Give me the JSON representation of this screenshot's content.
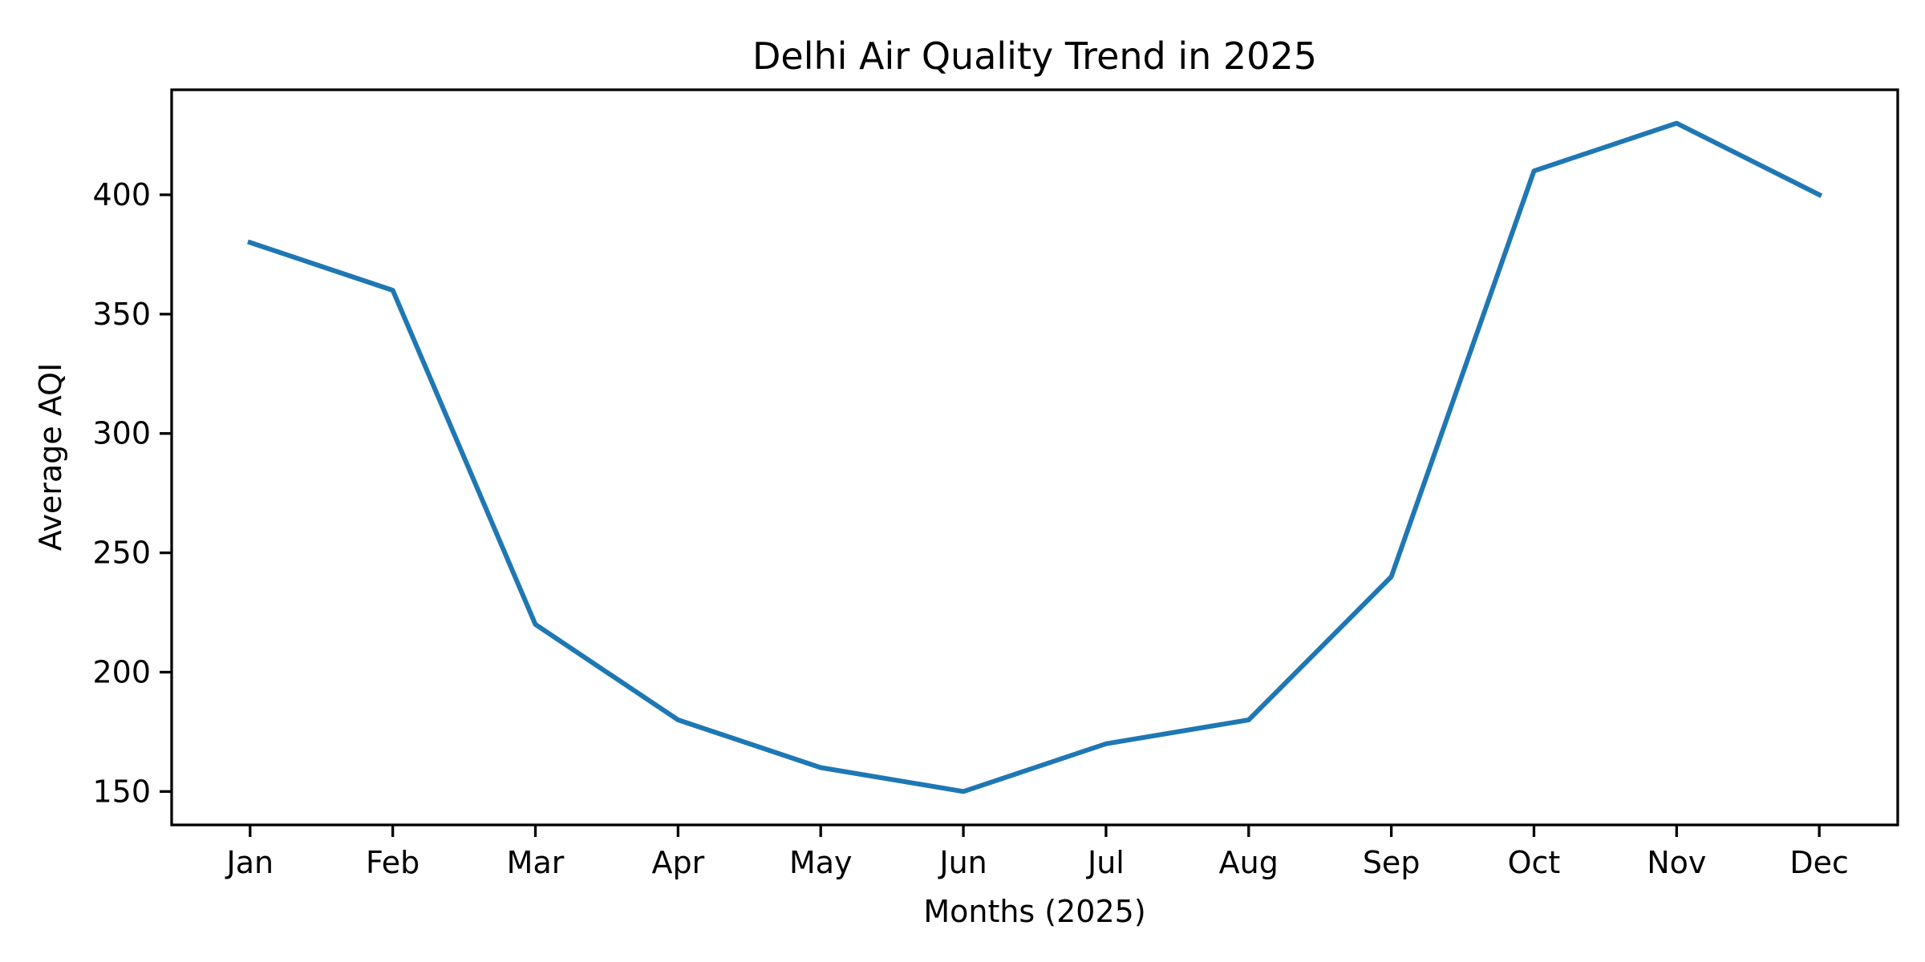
{
  "chart_data": {
    "type": "line",
    "title": "Delhi Air Quality Trend in 2025",
    "xlabel": "Months (2025)",
    "ylabel": "Average AQI",
    "categories": [
      "Jan",
      "Feb",
      "Mar",
      "Apr",
      "May",
      "Jun",
      "Jul",
      "Aug",
      "Sep",
      "Oct",
      "Nov",
      "Dec"
    ],
    "series": [
      {
        "name": "Average AQI",
        "values": [
          380,
          360,
          220,
          180,
          160,
          150,
          170,
          180,
          240,
          410,
          430,
          400
        ],
        "color": "#1f77b4"
      }
    ],
    "ylim": [
      136,
      444
    ],
    "yticks": [
      150,
      200,
      250,
      300,
      350,
      400
    ],
    "grid": false,
    "legend": "none"
  }
}
